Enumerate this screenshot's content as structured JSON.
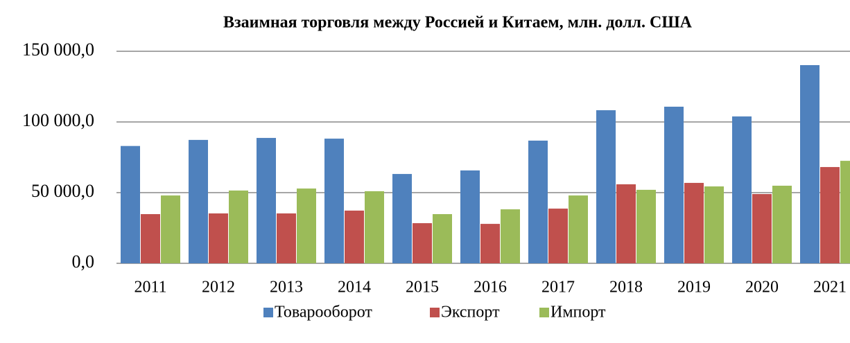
{
  "chart_data": {
    "type": "bar",
    "title": "Взаимная торговля между Россией и Китаем,  млн. долл. США",
    "categories": [
      "2011",
      "2012",
      "2013",
      "2014",
      "2015",
      "2016",
      "2017",
      "2018",
      "2019",
      "2020",
      "2021"
    ],
    "series": [
      {
        "name": "Товарооборот",
        "color": "#4f81bd",
        "values": [
          83000,
          87300,
          88700,
          88200,
          63200,
          65700,
          86800,
          108300,
          110800,
          103900,
          140200
        ]
      },
      {
        "name": "Экспорт",
        "color": "#c0504d",
        "values": [
          34800,
          35300,
          35300,
          37300,
          28400,
          27900,
          38700,
          55900,
          56900,
          49000,
          68100
        ]
      },
      {
        "name": "Импорт",
        "color": "#9bbb59",
        "values": [
          48000,
          51500,
          52900,
          51000,
          34800,
          38200,
          48000,
          52000,
          54400,
          54900,
          72500
        ]
      }
    ],
    "ylim": [
      0,
      150000
    ],
    "yticks": [
      {
        "value": 0,
        "label": "0,0"
      },
      {
        "value": 50000,
        "label": "50 000,0"
      },
      {
        "value": 100000,
        "label": "100 000,0"
      },
      {
        "value": 150000,
        "label": "150 000,0"
      }
    ],
    "grid": true,
    "legend": "bottom"
  }
}
